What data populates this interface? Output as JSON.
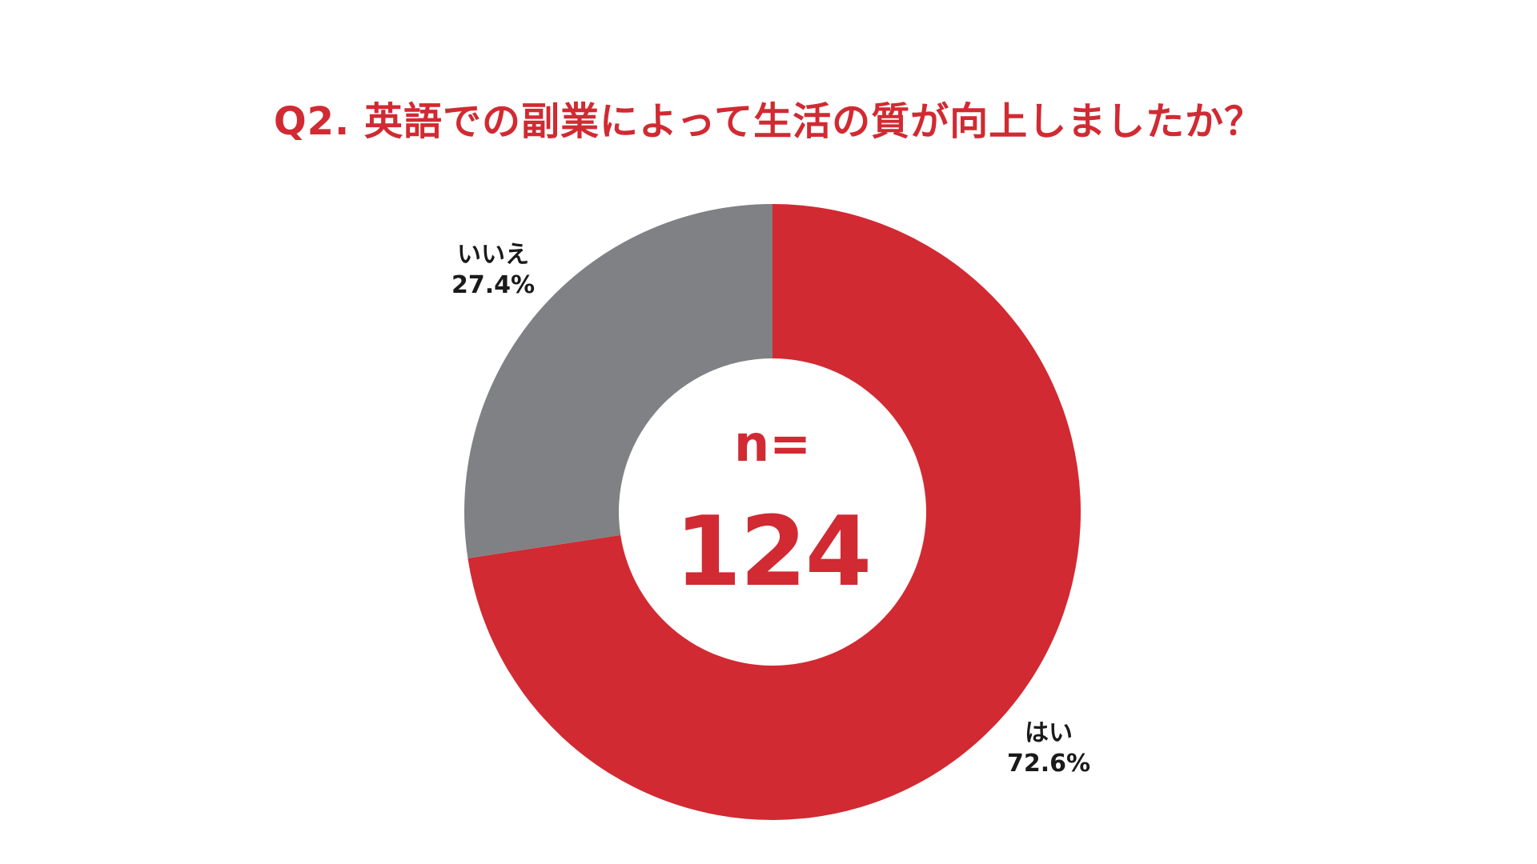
{
  "colors": {
    "accent": "#D12A32",
    "gray": "#808184",
    "text_dark": "#1A1A1A"
  },
  "chart_data": {
    "type": "pie",
    "title": "Q2. 英語での副業によって生活の質が向上しましたか？",
    "donut": true,
    "center_label": "n=",
    "center_value": "124",
    "slices": [
      {
        "label": "はい",
        "value": 72.6,
        "value_text": "72.6%",
        "color": "#D12A32"
      },
      {
        "label": "いいえ",
        "value": 27.4,
        "value_text": "27.4%",
        "color": "#808184"
      }
    ]
  }
}
